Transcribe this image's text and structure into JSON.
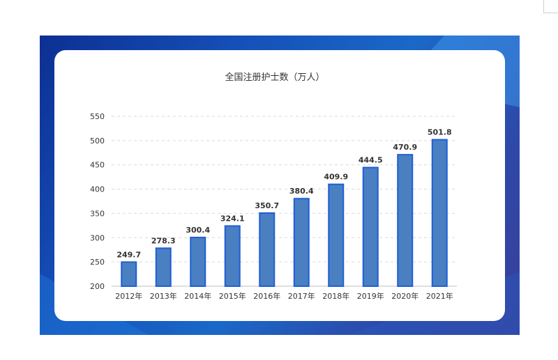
{
  "chart_data": {
    "type": "bar",
    "title": "全国注册护士数（万人）",
    "categories": [
      "2012年",
      "2013年",
      "2014年",
      "2015年",
      "2016年",
      "2017年",
      "2018年",
      "2019年",
      "2020年",
      "2021年"
    ],
    "values": [
      249.7,
      278.3,
      300.4,
      324.1,
      350.7,
      380.4,
      409.9,
      444.5,
      470.9,
      501.8
    ],
    "value_labels": [
      "249.7",
      "278.3",
      "300.4",
      "324.1",
      "350.7",
      "380.4",
      "409.9",
      "444.5",
      "470.9",
      "501.8"
    ],
    "y_ticks": [
      "200",
      "250",
      "300",
      "350",
      "400",
      "450",
      "500",
      "550"
    ],
    "ylim": [
      200,
      550
    ],
    "grid": true,
    "legend": "none",
    "colors": {
      "bar_fill": "#4a7fc1",
      "bar_edge": "#1f5fd6"
    }
  },
  "colors": {
    "frame_start": "#0d2f93",
    "frame_end": "#3a3f9a",
    "card": "#ffffff"
  }
}
